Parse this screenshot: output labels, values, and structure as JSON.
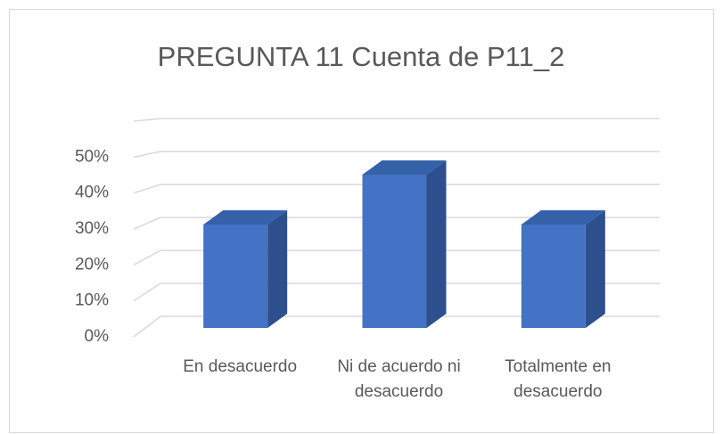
{
  "chart_data": {
    "type": "bar",
    "title": "PREGUNTA 11 Cuenta de P11_2",
    "categories": [
      "En desacuerdo",
      "Ni de acuerdo ni desacuerdo",
      "Totalmente en desacuerdo"
    ],
    "values": [
      29,
      43,
      29
    ],
    "color": "#4472c4",
    "ylim": [
      0,
      60
    ],
    "yticks": [
      {
        "value": 0,
        "label": "0%"
      },
      {
        "value": 10,
        "label": "10%"
      },
      {
        "value": 20,
        "label": "20%"
      },
      {
        "value": 30,
        "label": "30%"
      },
      {
        "value": 40,
        "label": "40%"
      },
      {
        "value": 50,
        "label": "50%"
      }
    ],
    "grid": true
  }
}
